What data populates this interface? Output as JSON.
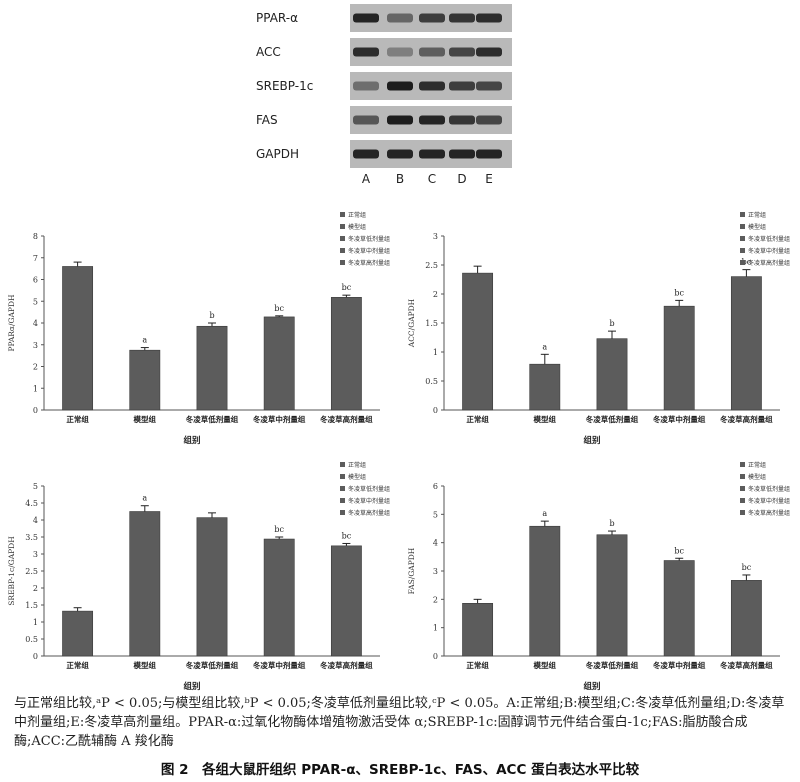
{
  "blot": {
    "rows": [
      "PPAR-α",
      "ACC",
      "SREBP-1c",
      "FAS",
      "GAPDH"
    ],
    "lanes": [
      "A",
      "B",
      "C",
      "D",
      "E"
    ],
    "band_intensity": [
      [
        0.9,
        0.5,
        0.75,
        0.8,
        0.85
      ],
      [
        0.85,
        0.35,
        0.55,
        0.7,
        0.85
      ],
      [
        0.45,
        0.95,
        0.85,
        0.75,
        0.7
      ],
      [
        0.6,
        0.95,
        0.9,
        0.8,
        0.7
      ],
      [
        0.9,
        0.9,
        0.9,
        0.9,
        0.9
      ]
    ]
  },
  "chart_data": [
    {
      "type": "bar",
      "ylabel": "PPARα/GAPDH",
      "xlabel": "组别",
      "categories": [
        "正常组",
        "模型组",
        "冬凌草低剂量组",
        "冬凌草中剂量组",
        "冬凌草高剂量组"
      ],
      "values": [
        6.6,
        2.75,
        3.85,
        4.28,
        5.18
      ],
      "errors": [
        0.2,
        0.12,
        0.15,
        0.05,
        0.1
      ],
      "labels": [
        "",
        "a",
        "b",
        "bc",
        "bc"
      ],
      "ylim": [
        0,
        8
      ],
      "yticks": [
        0,
        1,
        2,
        3,
        4,
        5,
        6,
        7,
        8
      ],
      "legend": [
        "正常组",
        "模型组",
        "冬凌草低剂量组",
        "冬凌草中剂量组",
        "冬凌草高剂量组"
      ],
      "legend_position": "top-right"
    },
    {
      "type": "bar",
      "ylabel": "ACC/GAPDH",
      "xlabel": "组别",
      "categories": [
        "正常组",
        "模型组",
        "冬凌草低剂量组",
        "冬凌草中剂量组",
        "冬凌草高剂量组"
      ],
      "values": [
        2.36,
        0.79,
        1.23,
        1.79,
        2.3
      ],
      "errors": [
        0.12,
        0.17,
        0.13,
        0.1,
        0.12
      ],
      "labels": [
        "",
        "a",
        "b",
        "bc",
        "bc"
      ],
      "ylim": [
        0,
        3
      ],
      "yticks": [
        0,
        0.5,
        1,
        1.5,
        2,
        2.5,
        3
      ],
      "legend": [
        "正常组",
        "模型组",
        "冬凌草低剂量组",
        "冬凌草中剂量组",
        "冬凌草高剂量组"
      ],
      "legend_position": "top-right"
    },
    {
      "type": "bar",
      "ylabel": "SREBP-1c/GAPDH",
      "xlabel": "组别",
      "categories": [
        "正常组",
        "模型组",
        "冬凌草低剂量组",
        "冬凌草中剂量组",
        "冬凌草高剂量组"
      ],
      "values": [
        1.32,
        4.25,
        4.07,
        3.44,
        3.24
      ],
      "errors": [
        0.1,
        0.17,
        0.14,
        0.06,
        0.07
      ],
      "labels": [
        "",
        "a",
        "",
        "bc",
        "bc"
      ],
      "ylim": [
        0,
        5
      ],
      "yticks": [
        0,
        0.5,
        1,
        1.5,
        2,
        2.5,
        3,
        3.5,
        4,
        4.5,
        5
      ],
      "legend": [
        "正常组",
        "模型组",
        "冬凌草低剂量组",
        "冬凌草中剂量组",
        "冬凌草高剂量组"
      ],
      "legend_position": "top-right"
    },
    {
      "type": "bar",
      "ylabel": "FAS/GAPDH",
      "xlabel": "组别",
      "categories": [
        "正常组",
        "模型组",
        "冬凌草低剂量组",
        "冬凌草中剂量组",
        "冬凌草高剂量组"
      ],
      "values": [
        1.86,
        4.58,
        4.28,
        3.37,
        2.67
      ],
      "errors": [
        0.14,
        0.18,
        0.13,
        0.08,
        0.19
      ],
      "labels": [
        "",
        "a",
        "b",
        "bc",
        "bc"
      ],
      "ylim": [
        0,
        6
      ],
      "yticks": [
        0,
        1,
        2,
        3,
        4,
        5,
        6
      ],
      "legend": [
        "正常组",
        "模型组",
        "冬凌草低剂量组",
        "冬凌草中剂量组",
        "冬凌草高剂量组"
      ],
      "legend_position": "top-right"
    }
  ],
  "caption": "与正常组比较,ᵃP < 0.05;与模型组比较,ᵇP < 0.05;冬凌草低剂量组比较,ᶜP < 0.05。A:正常组;B:模型组;C:冬凌草低剂量组;D:冬凌草中剂量组;E:冬凌草高剂量组。PPAR-α:过氧化物酶体增殖物激活受体 α;SREBP-1c:固醇调节元件结合蛋白-1c;FAS:脂肪酸合成酶;ACC:乙酰辅酶 A 羧化酶",
  "figure_title": "图 2　各组大鼠肝组织 PPAR-α、SREBP-1c、FAS、ACC 蛋白表达水平比较",
  "colors": {
    "bar": "#5c5c5c",
    "bar_stroke": "#3a3a3a",
    "axis": "#555555",
    "grid_bg": "#ffffff"
  }
}
